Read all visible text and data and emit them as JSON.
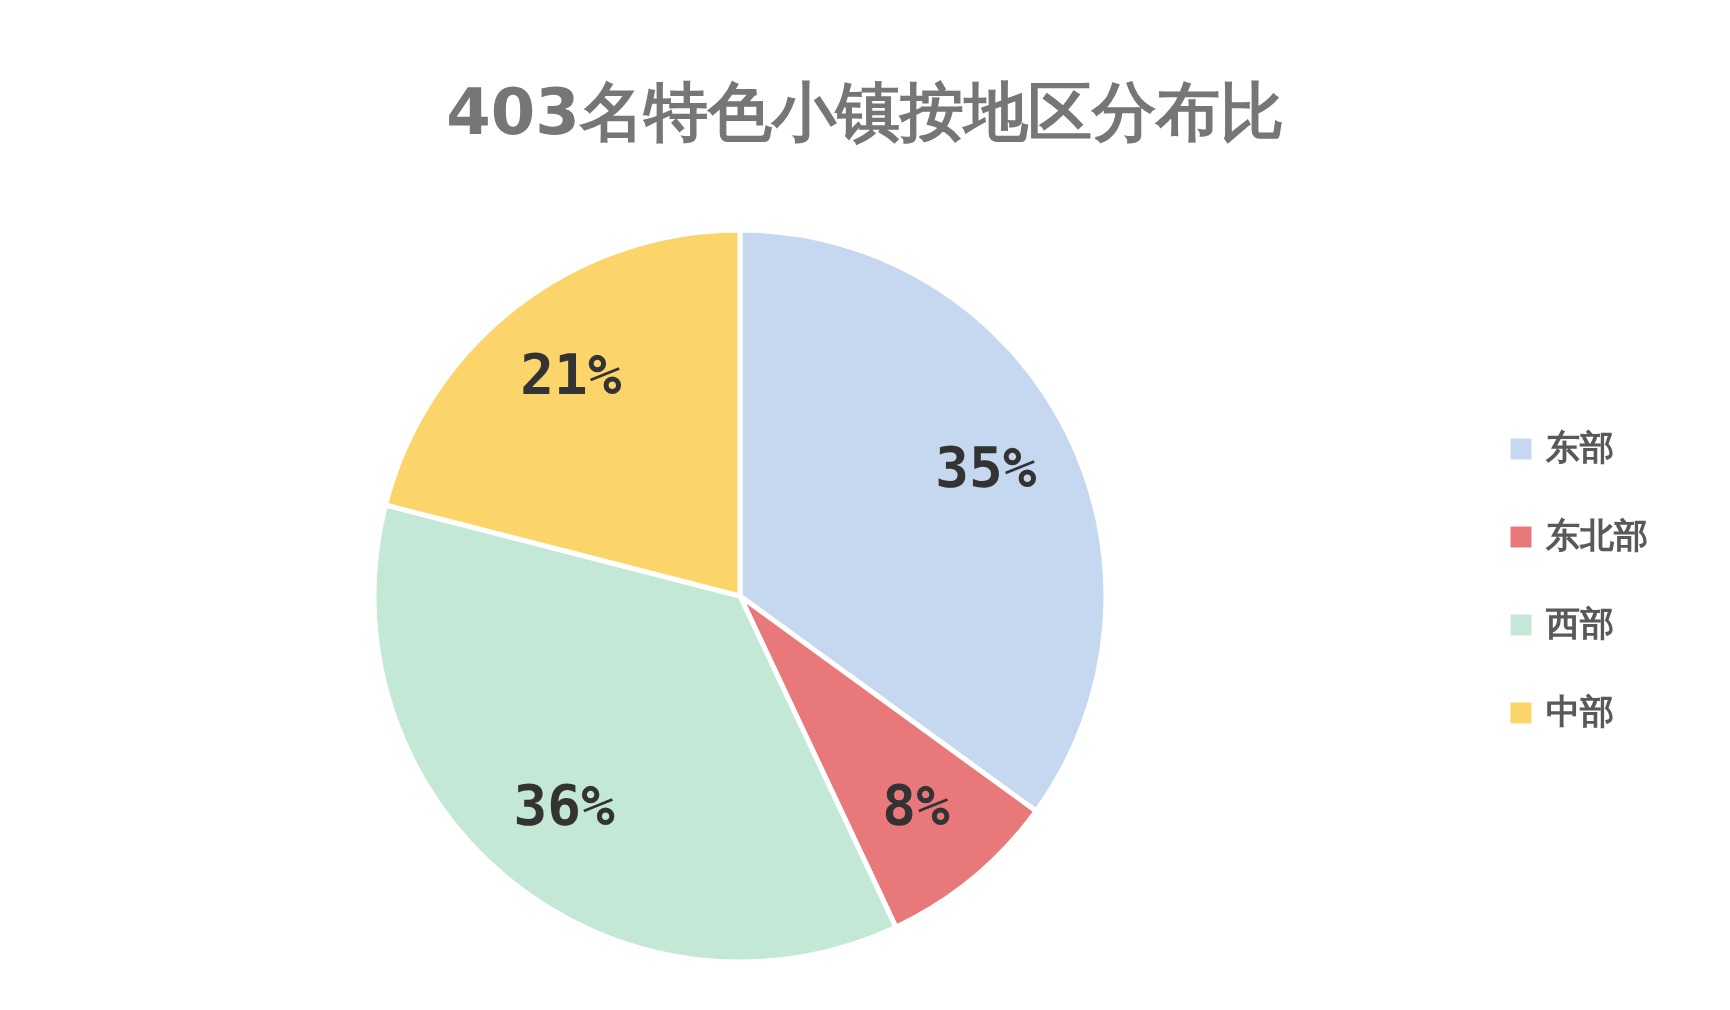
{
  "chart_data": {
    "type": "pie",
    "title": "403名特色小镇按地区分布比",
    "categories": [
      "东部",
      "东北部",
      "西部",
      "中部"
    ],
    "values": [
      35,
      8,
      36,
      21
    ],
    "colors": [
      "#c5d8ef",
      "#e8787a",
      "#c4e8d6",
      "#fcd56a"
    ],
    "value_labels": [
      "35%",
      "8%",
      "36%",
      "21%"
    ],
    "legend": "right"
  }
}
